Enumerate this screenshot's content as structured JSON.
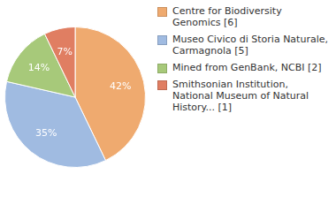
{
  "chart_data": {
    "type": "pie",
    "categories": [
      "Centre for Biodiversity Genomics [6]",
      "Museo Civico di Storia Naturale, Carmagnola [5]",
      "Mined from GenBank, NCBI [2]",
      "Smithsonian Institution, National Museum of Natural History... [1]"
    ],
    "values": [
      42,
      35,
      14,
      7
    ],
    "value_labels": [
      "42%",
      "35%",
      "14%",
      "7%"
    ],
    "colors": [
      "#efaa6f",
      "#a0bbe1",
      "#a7c97a",
      "#e07e62"
    ],
    "data_labels": true,
    "legend": "right"
  }
}
